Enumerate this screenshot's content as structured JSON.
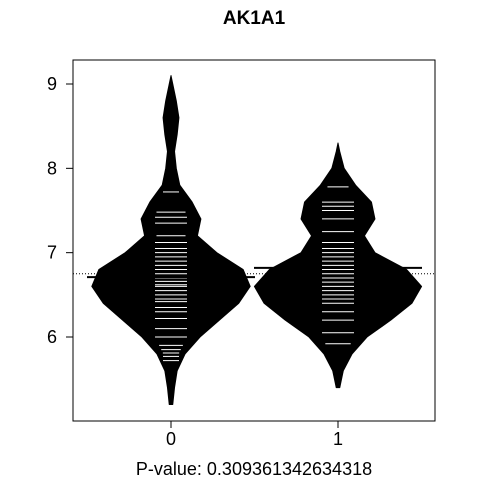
{
  "chart_data": {
    "type": "beanplot",
    "title": "AK1A1",
    "xlabel": "P-value: 0.309361342634318",
    "ylabel": "",
    "categories": [
      "0",
      "1"
    ],
    "ylim": [
      5.0,
      9.3
    ],
    "yticks": [
      6,
      7,
      8,
      9
    ],
    "overall_mean": 6.75,
    "grid": false,
    "series": [
      {
        "category": "0",
        "mean": 6.71,
        "density_y": [
          5.2,
          5.4,
          5.6,
          5.8,
          6.0,
          6.2,
          6.4,
          6.6,
          6.8,
          7.0,
          7.2,
          7.4,
          7.6,
          7.8,
          8.0,
          8.2,
          8.4,
          8.6,
          8.8,
          9.0,
          9.1
        ],
        "density_w": [
          0.02,
          0.04,
          0.07,
          0.16,
          0.33,
          0.55,
          0.77,
          0.9,
          0.82,
          0.52,
          0.3,
          0.34,
          0.24,
          0.1,
          0.06,
          0.04,
          0.07,
          0.09,
          0.06,
          0.02,
          0.0
        ],
        "observations": [
          5.72,
          5.77,
          5.81,
          5.85,
          5.9,
          6.0,
          6.1,
          6.22,
          6.3,
          6.35,
          6.42,
          6.45,
          6.5,
          6.55,
          6.6,
          6.62,
          6.66,
          6.7,
          6.75,
          6.8,
          6.85,
          6.9,
          6.95,
          7.0,
          7.05,
          7.12,
          7.2,
          7.35,
          7.42,
          7.48,
          7.72,
          8.62
        ]
      },
      {
        "category": "1",
        "mean": 6.82,
        "density_y": [
          5.4,
          5.6,
          5.8,
          6.0,
          6.2,
          6.4,
          6.6,
          6.8,
          7.0,
          7.2,
          7.4,
          7.6,
          7.8,
          8.0,
          8.2,
          8.3
        ],
        "density_w": [
          0.02,
          0.06,
          0.16,
          0.33,
          0.6,
          0.84,
          0.95,
          0.78,
          0.42,
          0.3,
          0.42,
          0.38,
          0.2,
          0.07,
          0.02,
          0.0
        ],
        "observations": [
          5.92,
          6.05,
          6.2,
          6.3,
          6.4,
          6.45,
          6.5,
          6.55,
          6.6,
          6.65,
          6.7,
          6.75,
          6.8,
          6.85,
          6.9,
          6.95,
          7.0,
          7.05,
          7.12,
          7.25,
          7.4,
          7.5,
          7.55,
          7.6,
          7.78
        ]
      }
    ]
  }
}
